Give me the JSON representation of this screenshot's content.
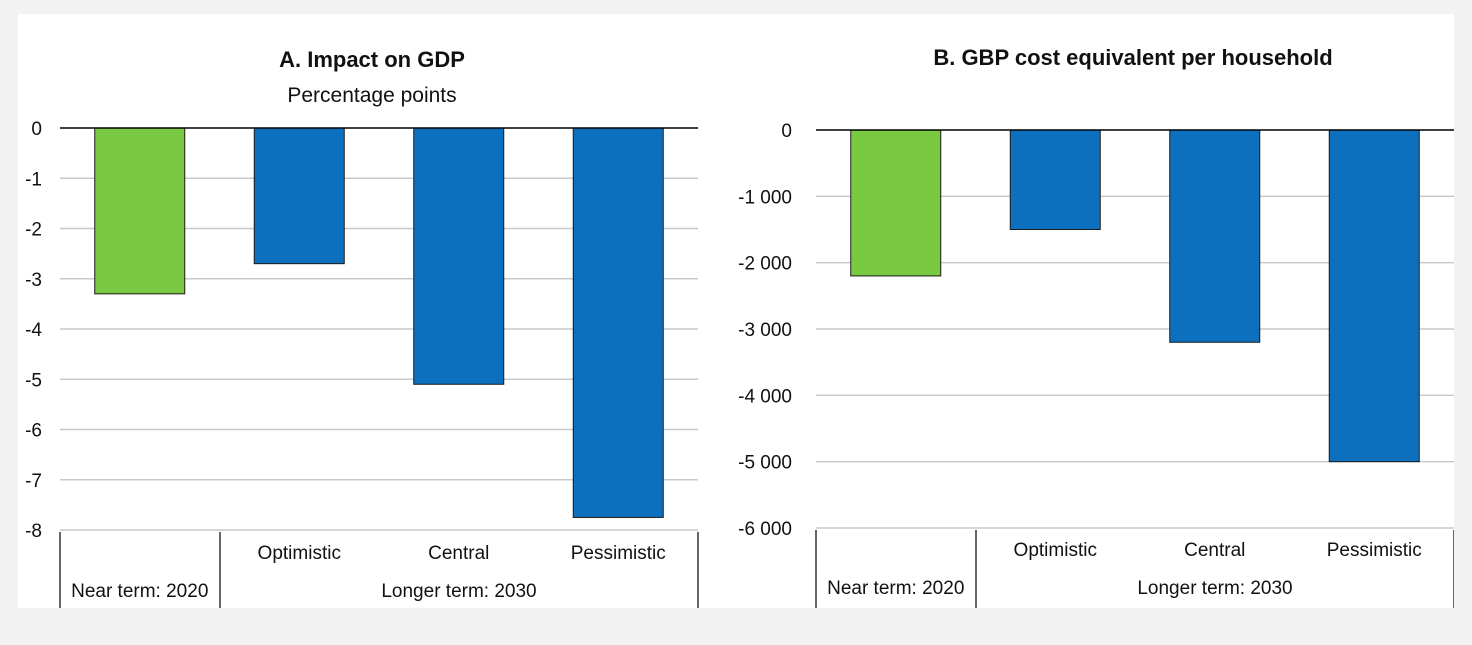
{
  "chart_data": [
    {
      "type": "bar",
      "title": "A. Impact on GDP",
      "subtitle": "Percentage points",
      "ylim": [
        -8,
        0
      ],
      "yticks": [
        0,
        -1,
        -2,
        -3,
        -4,
        -5,
        -6,
        -7,
        -8
      ],
      "ytick_labels": [
        "0",
        "-1",
        "-2",
        "-3",
        "-4",
        "-5",
        "-6",
        "-7",
        "-8"
      ],
      "categories": [
        "Near term: 2020",
        "Optimistic",
        "Central",
        "Pessimistic"
      ],
      "group_label": "Longer term: 2030",
      "values": [
        -3.3,
        -2.7,
        -5.1,
        -7.75
      ],
      "colors": [
        "#7ac943",
        "#0c70bf",
        "#0c70bf",
        "#0c70bf"
      ],
      "grid": true,
      "legend": "none"
    },
    {
      "type": "bar",
      "title": "B. GBP cost equivalent per household",
      "subtitle": "",
      "ylim": [
        -6000,
        0
      ],
      "yticks": [
        0,
        -1000,
        -2000,
        -3000,
        -4000,
        -5000,
        -6000
      ],
      "ytick_labels": [
        "0",
        "-1 000",
        "-2 000",
        "-3 000",
        "-4 000",
        "-5 000",
        "-6 000"
      ],
      "categories": [
        "Near term: 2020",
        "Optimistic",
        "Central",
        "Pessimistic"
      ],
      "group_label": "Longer term: 2030",
      "values": [
        -2200,
        -1500,
        -3200,
        -5000
      ],
      "colors": [
        "#7ac943",
        "#0c70bf",
        "#0c70bf",
        "#0c70bf"
      ],
      "grid": true,
      "legend": "none"
    }
  ]
}
